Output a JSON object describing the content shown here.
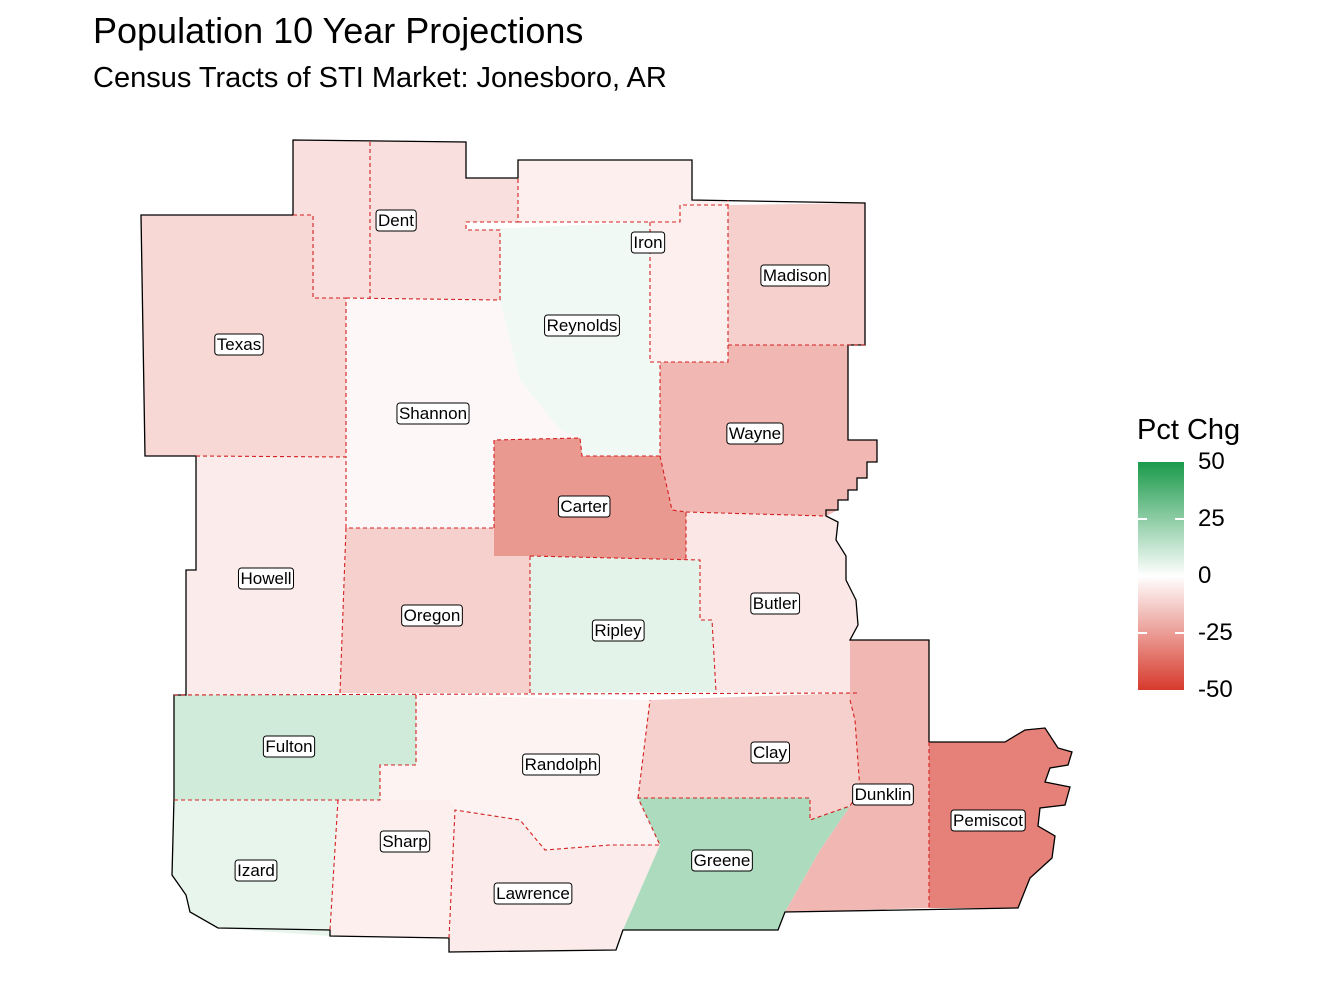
{
  "title": "Population 10 Year Projections",
  "subtitle": "Census Tracts of STI Market: Jonesboro, AR",
  "legend": {
    "title": "Pct Chg",
    "ticks": [
      50,
      25,
      0,
      -25,
      -50
    ],
    "range": [
      -50,
      50
    ],
    "colors": {
      "high": "#1a9a4a",
      "mid": "#ffffff",
      "low": "#d73a2c"
    }
  },
  "counties": [
    {
      "name": "Dent",
      "pct_chg": -8
    },
    {
      "name": "Iron",
      "pct_chg": -4
    },
    {
      "name": "Madison",
      "pct_chg": -12
    },
    {
      "name": "Texas",
      "pct_chg": -10
    },
    {
      "name": "Reynolds",
      "pct_chg": 3
    },
    {
      "name": "Shannon",
      "pct_chg": -2
    },
    {
      "name": "Wayne",
      "pct_chg": -18
    },
    {
      "name": "Carter",
      "pct_chg": -26
    },
    {
      "name": "Howell",
      "pct_chg": -5
    },
    {
      "name": "Oregon",
      "pct_chg": -12
    },
    {
      "name": "Ripley",
      "pct_chg": 6
    },
    {
      "name": "Butler",
      "pct_chg": -6
    },
    {
      "name": "Fulton",
      "pct_chg": 10
    },
    {
      "name": "Randolph",
      "pct_chg": -3
    },
    {
      "name": "Clay",
      "pct_chg": -12
    },
    {
      "name": "Dunklin",
      "pct_chg": -18
    },
    {
      "name": "Pemiscot",
      "pct_chg": -32
    },
    {
      "name": "Izard",
      "pct_chg": 5
    },
    {
      "name": "Sharp",
      "pct_chg": -4
    },
    {
      "name": "Lawrence",
      "pct_chg": -5
    },
    {
      "name": "Greene",
      "pct_chg": 18
    }
  ]
}
